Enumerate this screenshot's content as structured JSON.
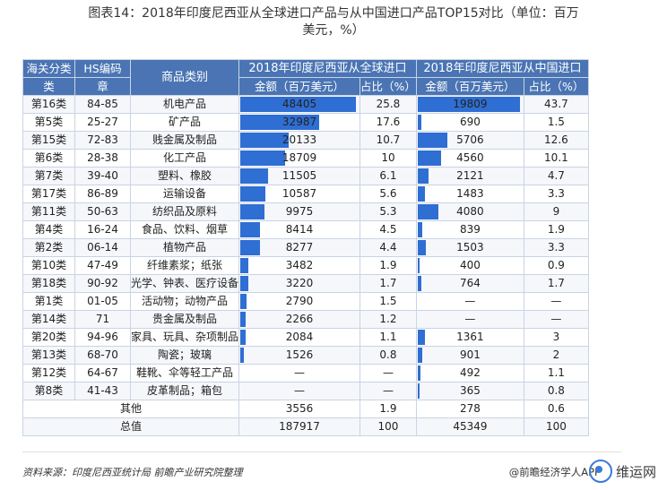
{
  "title_line1": "图表14：2018年印度尼西亚从全球进口产品与从中国进口产品TOP15对比（单位：百万",
  "title_line2": "美元，%）",
  "headers": {
    "col1a": "海关分类",
    "col1b": "类",
    "col2a": "HS编码",
    "col2b": "章",
    "col3": "商品类别",
    "global_group": "2018年印度尼西亚从全球进口",
    "china_group": "2018年印度尼西亚从中国进口",
    "amount": "金额（百万美元）",
    "share": "占比（%）"
  },
  "chart_data": {
    "type": "table",
    "title": "2018年印度尼西亚从全球进口产品与从中国进口产品TOP15对比（单位：百万美元，%）",
    "global_bar_max": 48405,
    "china_bar_max": 19809,
    "rows": [
      {
        "cls": "第16类",
        "hs": "84-85",
        "cat": "机电产品",
        "g_amt": "48405",
        "g_amt_v": 48405,
        "g_pct": "25.8",
        "c_amt": "19809",
        "c_amt_v": 19809,
        "c_pct": "43.7"
      },
      {
        "cls": "第5类",
        "hs": "25-27",
        "cat": "矿产品",
        "g_amt": "32987",
        "g_amt_v": 32987,
        "g_pct": "17.6",
        "c_amt": "690",
        "c_amt_v": 690,
        "c_pct": "1.5"
      },
      {
        "cls": "第15类",
        "hs": "72-83",
        "cat": "贱金属及制品",
        "g_amt": "20133",
        "g_amt_v": 20133,
        "g_pct": "10.7",
        "c_amt": "5706",
        "c_amt_v": 5706,
        "c_pct": "12.6"
      },
      {
        "cls": "第6类",
        "hs": "28-38",
        "cat": "化工产品",
        "g_amt": "18709",
        "g_amt_v": 18709,
        "g_pct": "10",
        "c_amt": "4560",
        "c_amt_v": 4560,
        "c_pct": "10.1"
      },
      {
        "cls": "第7类",
        "hs": "39-40",
        "cat": "塑料、橡胶",
        "g_amt": "11505",
        "g_amt_v": 11505,
        "g_pct": "6.1",
        "c_amt": "2121",
        "c_amt_v": 2121,
        "c_pct": "4.7"
      },
      {
        "cls": "第17类",
        "hs": "86-89",
        "cat": "运输设备",
        "g_amt": "10587",
        "g_amt_v": 10587,
        "g_pct": "5.6",
        "c_amt": "1483",
        "c_amt_v": 1483,
        "c_pct": "3.3"
      },
      {
        "cls": "第11类",
        "hs": "50-63",
        "cat": "纺织品及原料",
        "g_amt": "9975",
        "g_amt_v": 9975,
        "g_pct": "5.3",
        "c_amt": "4080",
        "c_amt_v": 4080,
        "c_pct": "9"
      },
      {
        "cls": "第4类",
        "hs": "16-24",
        "cat": "食品、饮料、烟草",
        "g_amt": "8414",
        "g_amt_v": 8414,
        "g_pct": "4.5",
        "c_amt": "839",
        "c_amt_v": 839,
        "c_pct": "1.9"
      },
      {
        "cls": "第2类",
        "hs": "06-14",
        "cat": "植物产品",
        "g_amt": "8277",
        "g_amt_v": 8277,
        "g_pct": "4.4",
        "c_amt": "1503",
        "c_amt_v": 1503,
        "c_pct": "3.3"
      },
      {
        "cls": "第10类",
        "hs": "47-49",
        "cat": "纤维素浆；纸张",
        "g_amt": "3482",
        "g_amt_v": 3482,
        "g_pct": "1.9",
        "c_amt": "400",
        "c_amt_v": 400,
        "c_pct": "0.9"
      },
      {
        "cls": "第18类",
        "hs": "90-92",
        "cat": "光学、钟表、医疗设备",
        "g_amt": "3220",
        "g_amt_v": 3220,
        "g_pct": "1.7",
        "c_amt": "764",
        "c_amt_v": 764,
        "c_pct": "1.7"
      },
      {
        "cls": "第1类",
        "hs": "01-05",
        "cat": "活动物；动物产品",
        "g_amt": "2790",
        "g_amt_v": 2790,
        "g_pct": "1.5",
        "c_amt": "—",
        "c_amt_v": 0,
        "c_pct": "—"
      },
      {
        "cls": "第14类",
        "hs": "71",
        "cat": "贵金属及制品",
        "g_amt": "2266",
        "g_amt_v": 2266,
        "g_pct": "1.2",
        "c_amt": "—",
        "c_amt_v": 0,
        "c_pct": "—"
      },
      {
        "cls": "第20类",
        "hs": "94-96",
        "cat": "家具、玩具、杂项制品",
        "g_amt": "2084",
        "g_amt_v": 2084,
        "g_pct": "1.1",
        "c_amt": "1361",
        "c_amt_v": 1361,
        "c_pct": "3"
      },
      {
        "cls": "第13类",
        "hs": "68-70",
        "cat": "陶瓷；玻璃",
        "g_amt": "1526",
        "g_amt_v": 1526,
        "g_pct": "0.8",
        "c_amt": "901",
        "c_amt_v": 901,
        "c_pct": "2"
      },
      {
        "cls": "第12类",
        "hs": "64-67",
        "cat": "鞋靴、伞等轻工产品",
        "g_amt": "—",
        "g_amt_v": 0,
        "g_pct": "—",
        "c_amt": "492",
        "c_amt_v": 492,
        "c_pct": "1.1"
      },
      {
        "cls": "第8类",
        "hs": "41-43",
        "cat": "皮革制品；箱包",
        "g_amt": "—",
        "g_amt_v": 0,
        "g_pct": "—",
        "c_amt": "365",
        "c_amt_v": 365,
        "c_pct": "0.8"
      }
    ],
    "summary": [
      {
        "label": "其他",
        "g_amt": "3556",
        "g_pct": "1.9",
        "c_amt": "278",
        "c_pct": "0.6"
      },
      {
        "label": "总值",
        "g_amt": "187917",
        "g_pct": "100",
        "c_amt": "45349",
        "c_pct": "100"
      }
    ]
  },
  "colors": {
    "header": "#4a74b4",
    "bar": "#2f6ed3"
  },
  "footer": {
    "source": "资料来源：印度尼西亚统计局 前瞻产业研究院整理",
    "brand": "@前瞻经济学人APP",
    "watermark": "维运网"
  }
}
